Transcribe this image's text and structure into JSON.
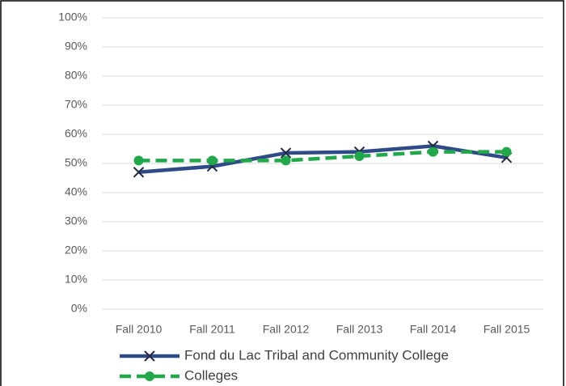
{
  "chart_data": {
    "type": "line",
    "categories": [
      "Fall 2010",
      "Fall 2011",
      "Fall 2012",
      "Fall 2013",
      "Fall 2014",
      "Fall 2015"
    ],
    "series": [
      {
        "name": "Fond du Lac Tribal and Community College",
        "color": "#2e4a87",
        "marker": "x",
        "dash": false,
        "values": [
          47,
          49,
          53.6,
          54,
          56,
          52
        ]
      },
      {
        "name": "Colleges",
        "color": "#21a84a",
        "marker": "circle",
        "dash": true,
        "values": [
          51,
          51,
          51,
          52.5,
          54,
          54
        ]
      }
    ],
    "ylim": [
      0,
      100
    ],
    "yticks": [
      {
        "value": 0,
        "label": "0%"
      },
      {
        "value": 10,
        "label": "10%"
      },
      {
        "value": 20,
        "label": "20%"
      },
      {
        "value": 30,
        "label": "30%"
      },
      {
        "value": 40,
        "label": "40%"
      },
      {
        "value": 50,
        "label": "50%"
      },
      {
        "value": 60,
        "label": "60%"
      },
      {
        "value": 70,
        "label": "70%"
      },
      {
        "value": 80,
        "label": "80%"
      },
      {
        "value": 90,
        "label": "90%"
      },
      {
        "value": 100,
        "label": "100%"
      }
    ],
    "grid": true,
    "legend": "bottom"
  }
}
